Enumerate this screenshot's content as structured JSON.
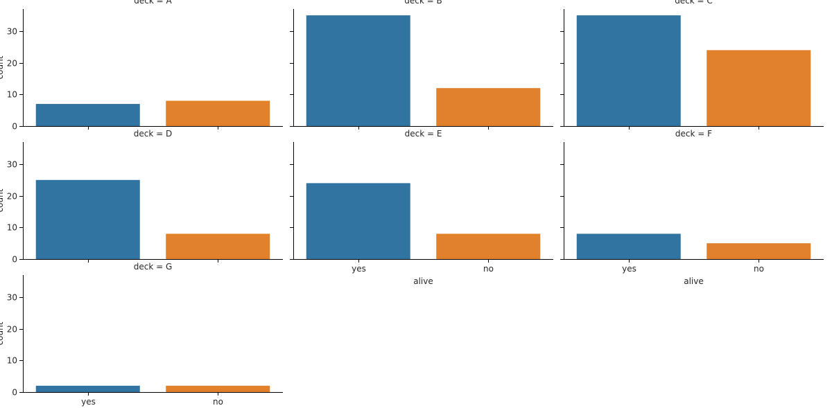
{
  "chart_data": {
    "type": "bar",
    "facet_variable": "deck",
    "categories": [
      "yes",
      "no"
    ],
    "colors": {
      "yes": "#3274a1",
      "no": "#e1812c"
    },
    "ylim": [
      0,
      37
    ],
    "yticks": [
      "0",
      "10",
      "20",
      "30"
    ],
    "xlabel": "alive",
    "ylabel": "count",
    "grid": false,
    "panels": [
      {
        "title": "deck = A",
        "values": [
          7,
          8
        ]
      },
      {
        "title": "deck = B",
        "values": [
          35,
          12
        ]
      },
      {
        "title": "deck = C",
        "values": [
          35,
          24
        ]
      },
      {
        "title": "deck = D",
        "values": [
          25,
          8
        ]
      },
      {
        "title": "deck = E",
        "values": [
          24,
          8
        ]
      },
      {
        "title": "deck = F",
        "values": [
          8,
          5
        ]
      },
      {
        "title": "deck = G",
        "values": [
          2,
          2
        ]
      }
    ]
  }
}
